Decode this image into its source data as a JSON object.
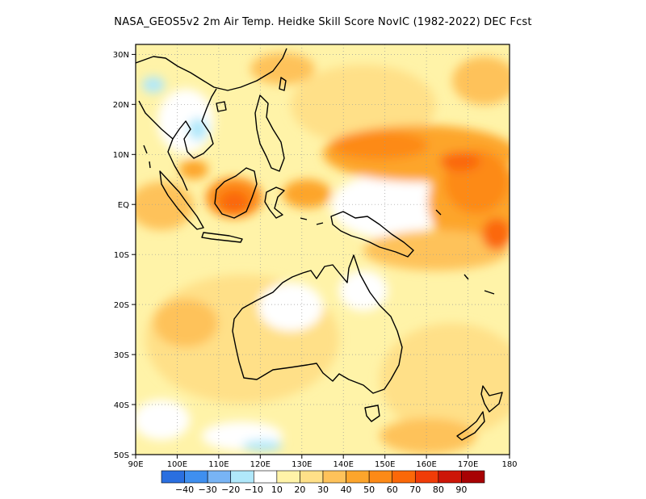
{
  "title": "NASA_GEOS5v2  2m Air Temp. Heidke Skill Score NovIC (1982-2022) DEC Fcst",
  "map": {
    "lon_range": [
      90,
      180
    ],
    "lat_range": [
      -50,
      32
    ],
    "grid": "dotted",
    "x_ticks": [
      "90E",
      "100E",
      "110E",
      "120E",
      "130E",
      "140E",
      "150E",
      "160E",
      "170E",
      "180"
    ],
    "y_ticks": [
      "30N",
      "20N",
      "10N",
      "EQ",
      "10S",
      "20S",
      "30S",
      "40S",
      "50S"
    ]
  },
  "colorbar": {
    "colors": [
      "#2a6fe0",
      "#3f8fef",
      "#78b4f5",
      "#b0e8fb",
      "#ffffff",
      "#fff3a8",
      "#ffe088",
      "#fec25a",
      "#fda52c",
      "#fd8a17",
      "#fb6808",
      "#f03c08",
      "#cd1608",
      "#a80204"
    ],
    "labels": [
      "-40",
      "-30",
      "-20",
      "-10",
      "10",
      "20",
      "30",
      "40",
      "50",
      "60",
      "70",
      "80",
      "90"
    ]
  }
}
